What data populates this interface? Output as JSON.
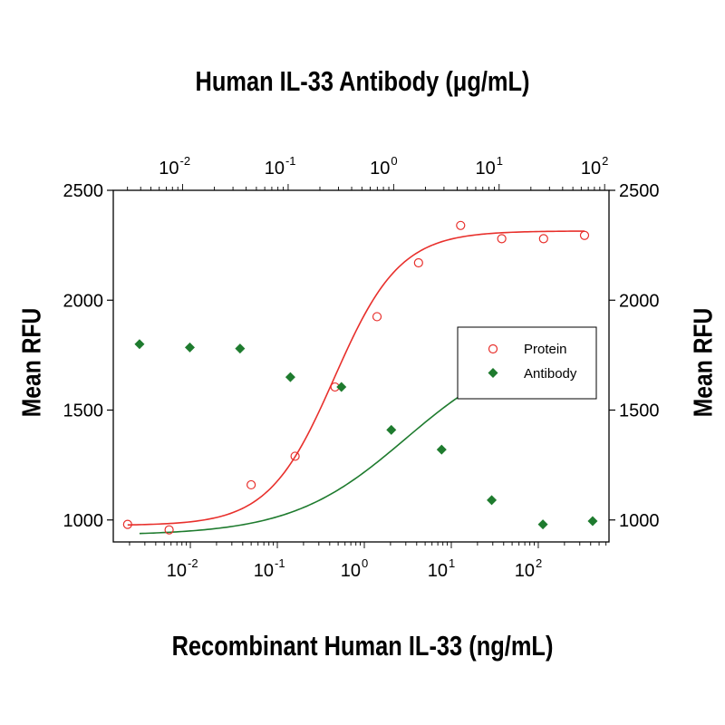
{
  "chart_data": {
    "type": "scatter",
    "title": "Human IL-33 Antibody (μg/mL)",
    "xlabel": "Recombinant Human IL-33 (ng/mL)",
    "ylabel": "Mean RFU",
    "ylabel_right": "Mean RFU",
    "x_scale": "log",
    "x_range": [
      0.0013,
      650
    ],
    "x_top_range": [
      0.0022,
      110
    ],
    "ylim": [
      900,
      2500
    ],
    "y_ticks": [
      1000,
      1500,
      2000,
      2500
    ],
    "x_tick_labels": [
      "10",
      "10",
      "10",
      "10",
      "10"
    ],
    "x_tick_exponents": [
      "-2",
      "-1",
      "0",
      "1",
      "2"
    ],
    "x_tick_values": [
      0.01,
      0.1,
      1,
      10,
      100
    ],
    "x_top_tick_labels": [
      "10",
      "10",
      "10",
      "10",
      "10"
    ],
    "x_top_tick_exponents": [
      "-2",
      "-1",
      "0",
      "1",
      "2"
    ],
    "x_top_tick_values": [
      0.01,
      0.1,
      1,
      10,
      100
    ],
    "legend": {
      "position": "right",
      "entries": [
        "Protein",
        "Antibody"
      ]
    },
    "series": [
      {
        "name": "Protein",
        "axis": "bottom",
        "marker": "open-circle",
        "color": "#e8302c",
        "x": [
          0.0019,
          0.0057,
          0.05,
          0.16,
          0.46,
          1.4,
          4.2,
          12.8,
          38,
          115,
          340
        ],
        "y": [
          980,
          955,
          1160,
          1290,
          1605,
          1925,
          2170,
          2340,
          2280,
          2280,
          2295
        ],
        "fit": {
          "bottom": 975,
          "top": 2315,
          "ec50": 0.45,
          "hill": 1.15
        }
      },
      {
        "name": "Antibody",
        "axis": "top",
        "marker": "filled-diamond",
        "color": "#1e7b2e",
        "x": [
          0.0039,
          0.0117,
          0.035,
          0.105,
          0.32,
          0.95,
          2.85,
          8.5,
          26,
          77
        ],
        "y": [
          1800,
          1785,
          1780,
          1650,
          1605,
          1410,
          1320,
          1090,
          980,
          995
        ],
        "fit": {
          "bottom": 930,
          "top": 1810,
          "ec50": 1.3,
          "hill": 0.8
        }
      }
    ]
  }
}
